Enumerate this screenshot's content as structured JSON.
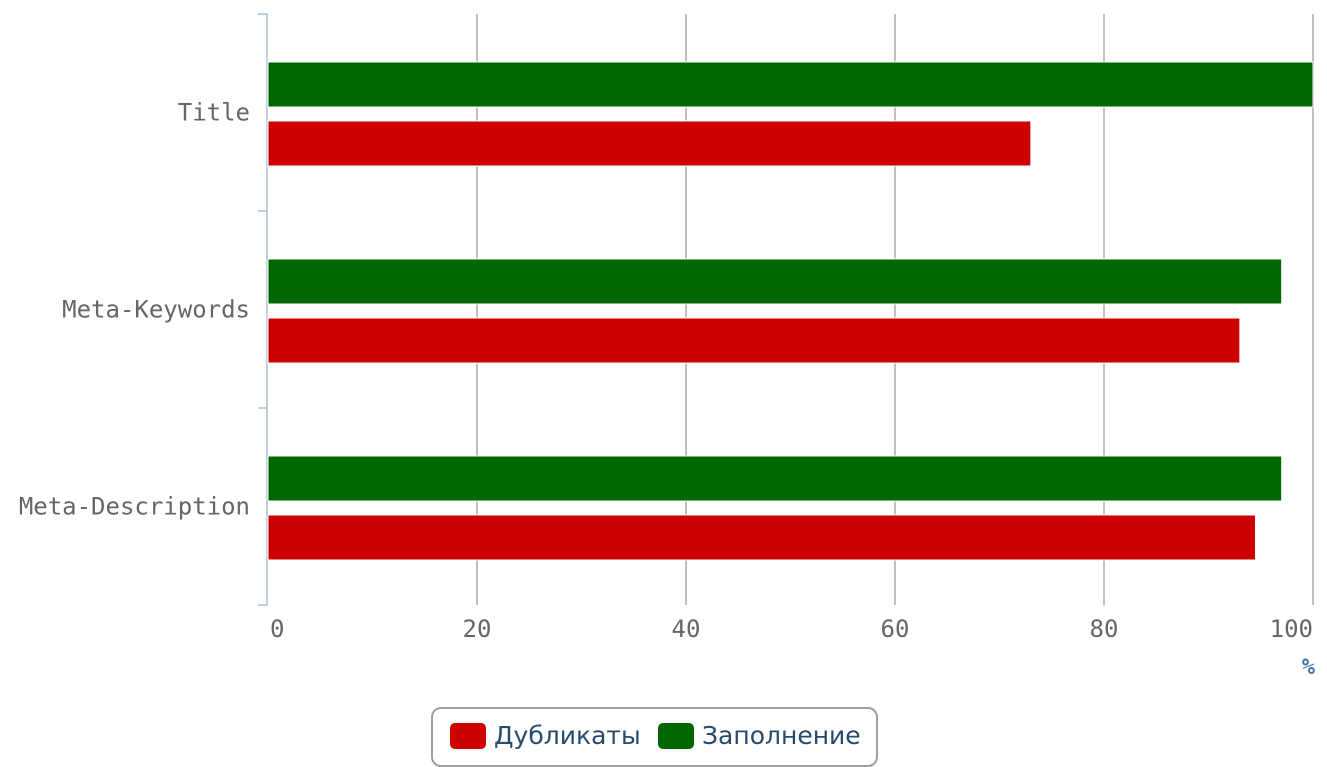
{
  "chart_data": {
    "type": "bar",
    "orientation": "horizontal",
    "categories": [
      "Title",
      "Meta-Keywords",
      "Meta-Description"
    ],
    "series": [
      {
        "name": "Заполнение",
        "color": "#006600",
        "values": [
          100,
          97,
          97
        ]
      },
      {
        "name": "Дубликаты",
        "color": "#cc0000",
        "values": [
          73,
          93,
          94.5
        ]
      }
    ],
    "x_ticks": [
      "0",
      "20",
      "40",
      "60",
      "80",
      "100"
    ],
    "xlim": [
      0,
      100
    ],
    "unit_label": "%",
    "grid": true,
    "legend_position": "bottom-center"
  },
  "legend": {
    "items": [
      {
        "label": "Дубликаты",
        "color": "#cc0000"
      },
      {
        "label": "Заполнение",
        "color": "#006600"
      }
    ]
  }
}
